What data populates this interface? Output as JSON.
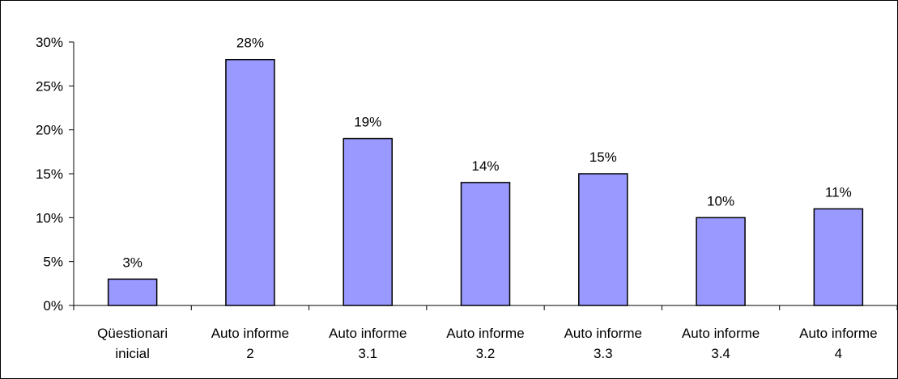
{
  "chart_data": {
    "type": "bar",
    "categories": [
      [
        "Qüestionari",
        "inicial"
      ],
      [
        "Auto informe",
        "2"
      ],
      [
        "Auto informe",
        "3.1"
      ],
      [
        "Auto informe",
        "3.2"
      ],
      [
        "Auto informe",
        "3.3"
      ],
      [
        "Auto informe",
        "3.4"
      ],
      [
        "Auto informe",
        "4"
      ]
    ],
    "values": [
      3,
      28,
      19,
      14,
      15,
      10,
      11
    ],
    "data_labels": [
      "3%",
      "28%",
      "19%",
      "14%",
      "15%",
      "10%",
      "11%"
    ],
    "ylim": [
      0,
      30
    ],
    "yticks": [
      0,
      5,
      10,
      15,
      20,
      25,
      30
    ],
    "ytick_labels": [
      "0%",
      "5%",
      "10%",
      "15%",
      "20%",
      "25%",
      "30%"
    ],
    "title": "",
    "xlabel": "",
    "ylabel": "",
    "grid": false,
    "legend": "none",
    "bar_color": "#9999ff",
    "bar_edge_color": "#000000"
  }
}
